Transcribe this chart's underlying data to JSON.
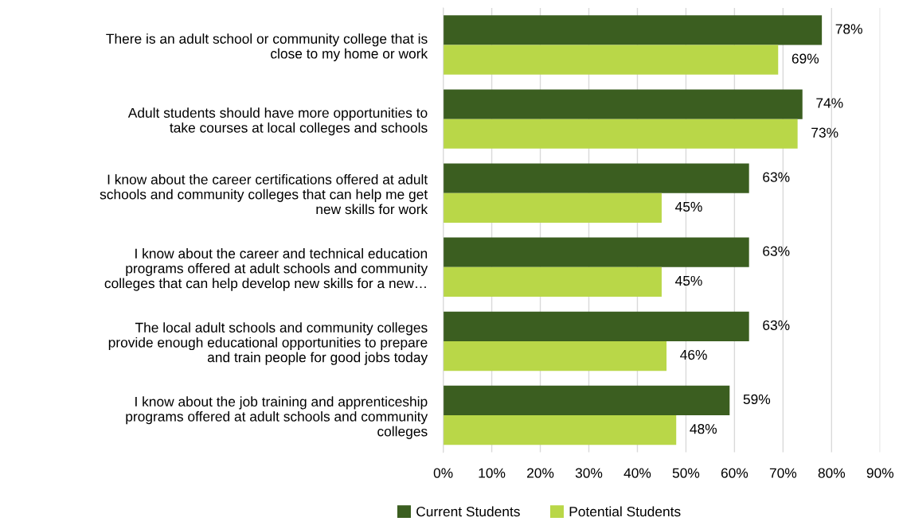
{
  "chart_data": {
    "type": "bar",
    "orientation": "horizontal",
    "categories": [
      "There is an adult school or community college that is\nclose to my home or work",
      "Adult students should have more opportunities to\ntake courses at local colleges and schools",
      "I know about the career certifications offered at adult\nschools and community colleges that can help me get\nnew skills for work",
      "I know about the career and technical education\nprograms offered at adult schools and community\ncolleges that can help develop new skills for a new…",
      "The local adult schools and community colleges\nprovide enough educational opportunities to prepare\nand train people for good jobs today",
      "I know about the job training and apprenticeship\nprograms offered at adult schools and community\ncolleges"
    ],
    "series": [
      {
        "name": "Current Students",
        "color": "#3b5e20",
        "values": [
          78,
          74,
          63,
          63,
          63,
          59
        ],
        "value_labels": [
          "78%",
          "74%",
          "63%",
          "63%",
          "63%",
          "59%"
        ]
      },
      {
        "name": "Potential Students",
        "color": "#b9d748",
        "values": [
          69,
          73,
          45,
          45,
          46,
          48
        ],
        "value_labels": [
          "69%",
          "73%",
          "45%",
          "45%",
          "46%",
          "48%"
        ]
      }
    ],
    "xlim": [
      0,
      90
    ],
    "xticks": [
      {
        "value": 0,
        "label": "0%"
      },
      {
        "value": 10,
        "label": "10%"
      },
      {
        "value": 20,
        "label": "20%"
      },
      {
        "value": 30,
        "label": "30%"
      },
      {
        "value": 40,
        "label": "40%"
      },
      {
        "value": 50,
        "label": "50%"
      },
      {
        "value": 60,
        "label": "60%"
      },
      {
        "value": 70,
        "label": "70%"
      },
      {
        "value": 80,
        "label": "80%"
      },
      {
        "value": 90,
        "label": "90%"
      }
    ],
    "grid": "x",
    "legend": "bottom"
  }
}
